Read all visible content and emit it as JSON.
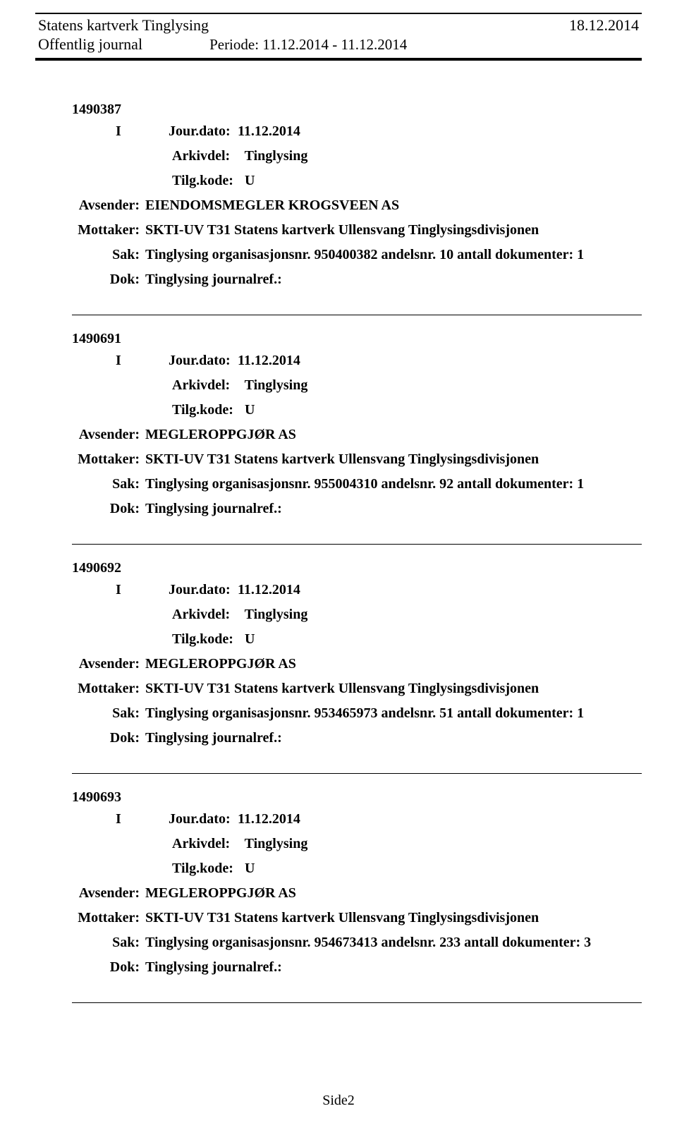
{
  "header": {
    "title": "Statens kartverk Tinglysing",
    "date": "18.12.2014",
    "subtitle": "Offentlig journal",
    "period": "Periode: 11.12.2014 - 11.12.2014"
  },
  "records": [
    {
      "id": "1490387",
      "direction": "I",
      "jourdato": "11.12.2014",
      "arkivdel": "Tinglysing",
      "tilgkode": "U",
      "avsender": "EIENDOMSMEGLER KROGSVEEN AS",
      "mottaker": "SKTI-UV T31 Statens kartverk Ullensvang Tinglysingsdivisjonen",
      "sak": "Tinglysing organisasjonsnr. 950400382 andelsnr. 10 antall dokumenter: 1",
      "dok": "Tinglysing journalref.:"
    },
    {
      "id": "1490691",
      "direction": "I",
      "jourdato": "11.12.2014",
      "arkivdel": "Tinglysing",
      "tilgkode": "U",
      "avsender": "MEGLEROPPGJØR AS",
      "mottaker": "SKTI-UV T31 Statens kartverk Ullensvang Tinglysingsdivisjonen",
      "sak": "Tinglysing organisasjonsnr. 955004310 andelsnr. 92 antall dokumenter: 1",
      "dok": "Tinglysing journalref.:"
    },
    {
      "id": "1490692",
      "direction": "I",
      "jourdato": "11.12.2014",
      "arkivdel": "Tinglysing",
      "tilgkode": "U",
      "avsender": "MEGLEROPPGJØR AS",
      "mottaker": "SKTI-UV T31 Statens kartverk Ullensvang Tinglysingsdivisjonen",
      "sak": "Tinglysing organisasjonsnr. 953465973 andelsnr. 51 antall dokumenter: 1",
      "dok": "Tinglysing journalref.:"
    },
    {
      "id": "1490693",
      "direction": "I",
      "jourdato": "11.12.2014",
      "arkivdel": "Tinglysing",
      "tilgkode": "U",
      "avsender": "MEGLEROPPGJØR AS",
      "mottaker": "SKTI-UV T31 Statens kartverk Ullensvang Tinglysingsdivisjonen",
      "sak": "Tinglysing organisasjonsnr. 954673413 andelsnr. 233 antall dokumenter: 3",
      "dok": "Tinglysing journalref.:"
    }
  ],
  "labels": {
    "jourdato": "Jour.dato:",
    "arkivdel": "Arkivdel:",
    "tilgkode": "Tilg.kode:",
    "avsender": "Avsender:",
    "mottaker": "Mottaker:",
    "sak": "Sak:",
    "dok": "Dok:"
  },
  "footer": {
    "page": "Side2"
  }
}
